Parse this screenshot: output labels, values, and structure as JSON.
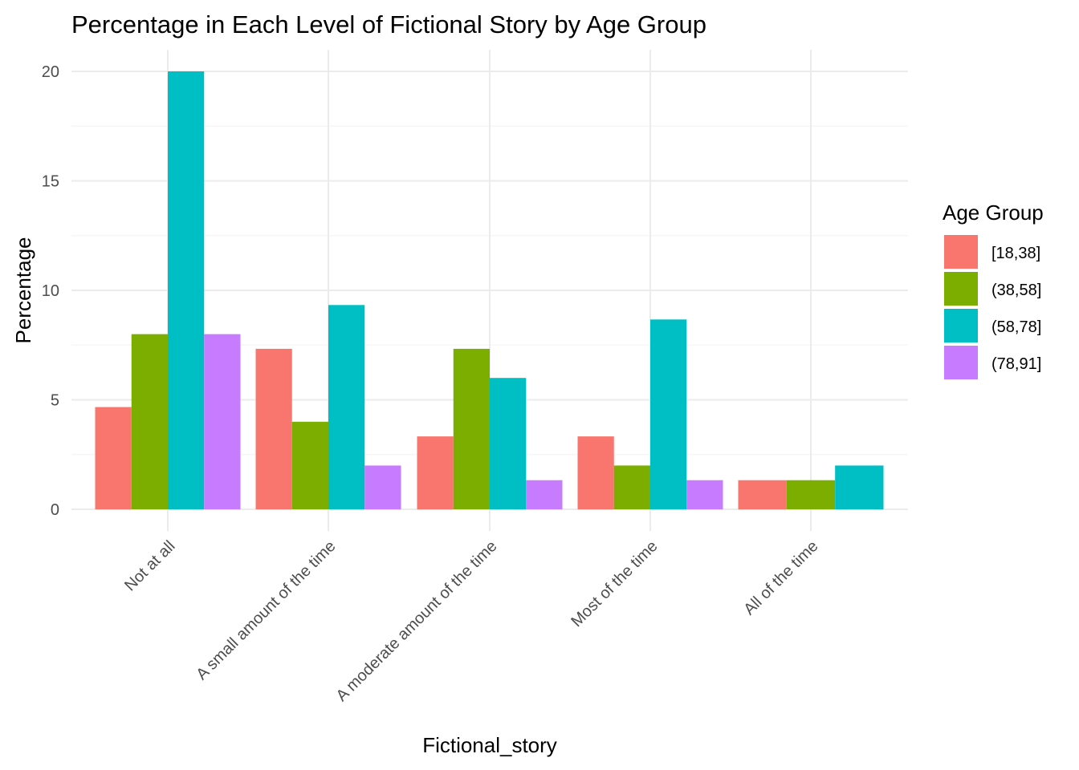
{
  "chart_data": {
    "type": "bar",
    "title": "Percentage in Each Level of Fictional Story by Age Group",
    "xlabel": "Fictional_story",
    "ylabel": "Percentage",
    "categories": [
      "Not at all",
      "A small amount of the time",
      "A moderate amount of the time",
      "Most of the time",
      "All of the time"
    ],
    "legend_title": "Age Group",
    "legend_position": "right",
    "grid": true,
    "ylim": [
      0,
      20
    ],
    "yticks": [
      0,
      5,
      10,
      15,
      20
    ],
    "series": [
      {
        "name": "[18,38]",
        "color": "#F8766D",
        "values": [
          4.67,
          7.33,
          3.33,
          3.33,
          1.33
        ]
      },
      {
        "name": "(38,58]",
        "color": "#7CAE00",
        "values": [
          8.0,
          4.0,
          7.33,
          2.0,
          1.33
        ]
      },
      {
        "name": "(58,78]",
        "color": "#00BFC4",
        "values": [
          20.0,
          9.33,
          6.0,
          8.67,
          2.0
        ]
      },
      {
        "name": "(78,91]",
        "color": "#C77CFF",
        "values": [
          8.0,
          2.0,
          1.33,
          1.33,
          null
        ]
      }
    ]
  }
}
